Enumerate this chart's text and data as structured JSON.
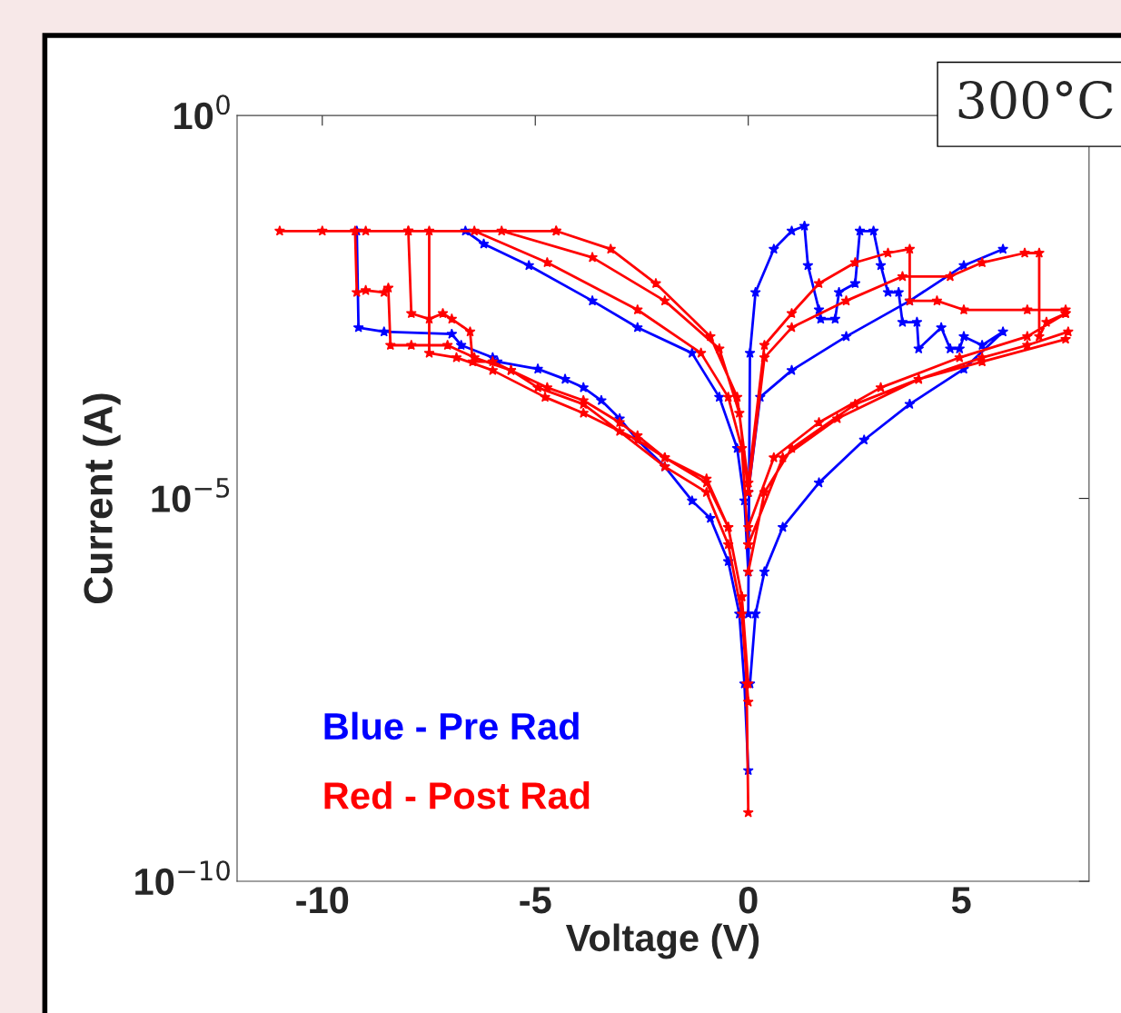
{
  "chart_data": {
    "type": "line",
    "xlabel": "Voltage (V)",
    "ylabel": "Current (A)",
    "xlim": [
      -12,
      8
    ],
    "xticks": [
      -10,
      -5,
      0,
      5
    ],
    "ylim": [
      1e-10,
      1
    ],
    "log": true,
    "yticks": [
      {
        "value": 1e-10,
        "label": "10$^{−10}$"
      },
      {
        "value": 1e-05,
        "label": "10$^{−5}$"
      },
      {
        "value": 1,
        "label": "10$^{0}$"
      }
    ],
    "grid": false,
    "legend": "bottom left",
    "marker": "star",
    "annotations": [
      "300°C"
    ],
    "series": [
      {
        "name": "Blue - Pre Rad",
        "color": "#0000ff",
        "x": [
          -9.19,
          -9.15,
          -8.55,
          -6.96,
          -6.74,
          -6.0,
          -5.89,
          -4.94,
          -4.3,
          -3.87,
          -3.45,
          -3.02,
          -2.6,
          -1.96,
          -1.32,
          -0.89,
          -0.47,
          -0.21,
          -0.09,
          0,
          null,
          -6.64,
          -6.21,
          -5.15,
          -3.66,
          -2.6,
          -1.32,
          -0.68,
          -0.26,
          -0.09,
          0,
          null,
          0,
          0.04,
          0.17,
          0.6,
          1.02,
          1.32,
          1.4,
          1.66,
          1.7,
          2.04,
          2.13,
          2.51,
          2.62,
          2.94,
          3.11,
          3.28,
          3.53,
          3.62,
          3.96,
          4.0,
          4.53,
          4.74,
          4.96,
          5.06,
          5.49,
          5.98,
          5.06,
          3.79,
          2.72,
          1.66,
          0.81,
          0.38,
          0.17,
          0.04,
          null,
          0,
          0.28,
          1.02,
          2.3,
          3.79,
          5.06,
          5.98
        ],
        "values": [
          0.031,
          0.0017,
          0.0015,
          0.0014,
          0.001,
          0.00069,
          0.00061,
          0.00049,
          0.00036,
          0.00028,
          0.00019,
          0.00011,
          5.8e-05,
          2.6e-05,
          9.3e-06,
          5.5e-06,
          1.5e-06,
          3.1e-07,
          3.8e-08,
          2.8e-09,
          null,
          0.031,
          0.021,
          0.011,
          0.0038,
          0.0017,
          0.00079,
          0.00021,
          4.5e-05,
          9.3e-06,
          1.1e-06,
          null,
          3.1e-07,
          0.00079,
          0.0049,
          0.018,
          0.031,
          0.036,
          0.011,
          0.0029,
          0.0022,
          0.0022,
          0.0049,
          0.0064,
          0.031,
          0.031,
          0.011,
          0.0049,
          0.0049,
          0.002,
          0.002,
          0.0009,
          0.0017,
          0.0009,
          0.0009,
          0.0013,
          0.001,
          0.0015,
          0.00049,
          0.00017,
          5.8e-05,
          1.6e-05,
          4.2e-06,
          1.1e-06,
          3.1e-07,
          3.8e-08,
          null,
          1.2e-05,
          0.00021,
          0.00047,
          0.0013,
          0.0038,
          0.011,
          0.018
        ]
      },
      {
        "name": "Red - Post Rad",
        "color": "#ff0000",
        "x": [
          -11.0,
          -10.0,
          -8.98,
          -7.98,
          -4.51,
          null,
          -9.23,
          -9.19,
          -8.98,
          -8.55,
          -8.45,
          -8.4,
          -7.91,
          -7.06,
          -6.43,
          -5.57,
          -4.72,
          -3.87,
          -3.02,
          -2.6,
          -1.96,
          -0.98,
          -0.47,
          -0.15,
          -0.04,
          0,
          null,
          -7.98,
          -7.91,
          -7.49,
          -7.17,
          -6.96,
          -6.53,
          -6.47,
          -6.0,
          -5.57,
          -4.94,
          -3.87,
          -3.02,
          -1.96,
          -0.98,
          -0.47,
          -0.15,
          0,
          null,
          -7.49,
          -7.49,
          -6.85,
          -6.0,
          -4.77,
          -3.87,
          -2.6,
          -1.96,
          -0.98,
          -0.47,
          -0.15,
          0,
          null,
          -6.43,
          -4.72,
          -2.6,
          -1.11,
          -0.47,
          -0.15,
          0,
          null,
          -5.79,
          -3.66,
          -1.96,
          -0.68,
          -0.21,
          0,
          null,
          -4.51,
          -3.23,
          -2.17,
          -0.89,
          -0.26,
          0,
          null,
          0,
          0.38,
          1.02,
          1.66,
          2.51,
          3.28,
          3.79,
          3.79,
          4.43,
          5.06,
          6.55,
          7.45,
          null,
          0,
          0.38,
          1.02,
          2.3,
          3.62,
          4.74,
          5.49,
          6.49,
          6.83,
          6.83,
          7.0,
          7.45,
          null,
          0,
          0.38,
          1.02,
          2.51,
          4.0,
          5.49,
          6.55,
          7.51,
          null,
          0,
          0.6,
          1.66,
          3.11,
          4.96,
          6.55,
          7.45,
          null,
          0,
          0.81,
          2.09,
          4.0,
          5.49,
          7.45
        ],
        "values": [
          0.031,
          0.031,
          0.031,
          0.031,
          0.031,
          null,
          0.031,
          0.0049,
          0.0052,
          0.0049,
          0.0056,
          0.001,
          0.001,
          0.001,
          0.00069,
          0.00047,
          0.00028,
          0.00019,
          9.8e-05,
          6.6e-05,
          3.4e-05,
          1.8e-05,
          4.2e-06,
          5.2e-07,
          3.8e-08,
          7.9e-10,
          null,
          0.031,
          0.0026,
          0.0022,
          0.0026,
          0.0022,
          0.0015,
          0.00061,
          0.00061,
          0.00047,
          0.00028,
          0.00017,
          7.5e-05,
          2.6e-05,
          1.2e-05,
          2.5e-06,
          3.1e-07,
          2.2e-08,
          null,
          0.031,
          0.00079,
          0.00069,
          0.00047,
          0.00021,
          0.00013,
          5.8e-05,
          3.4e-05,
          1.6e-05,
          4.2e-06,
          5.2e-07,
          3.8e-08,
          null,
          0.031,
          0.012,
          0.0029,
          0.00079,
          0.00021,
          4.5e-05,
          2.5e-06,
          null,
          0.031,
          0.014,
          0.0038,
          0.0009,
          0.00013,
          1.2e-05,
          null,
          0.031,
          0.018,
          0.0064,
          0.0013,
          0.00021,
          1.6e-05,
          null,
          1.6e-05,
          0.001,
          0.0026,
          0.0064,
          0.012,
          0.016,
          0.018,
          0.0038,
          0.0038,
          0.0029,
          0.0029,
          0.0029,
          null,
          1.2e-05,
          0.00069,
          0.0017,
          0.0038,
          0.0079,
          0.0079,
          0.012,
          0.016,
          0.016,
          0.0013,
          0.002,
          0.0026,
          null,
          1.1e-06,
          1.2e-05,
          4.5e-05,
          0.00017,
          0.00036,
          0.00069,
          0.001,
          0.0015,
          null,
          4.2e-06,
          3.4e-05,
          9.8e-05,
          0.00028,
          0.00069,
          0.0013,
          0.0026,
          null,
          2.5e-06,
          3.4e-05,
          0.00011,
          0.00036,
          0.00061,
          0.0012
        ]
      }
    ]
  }
}
